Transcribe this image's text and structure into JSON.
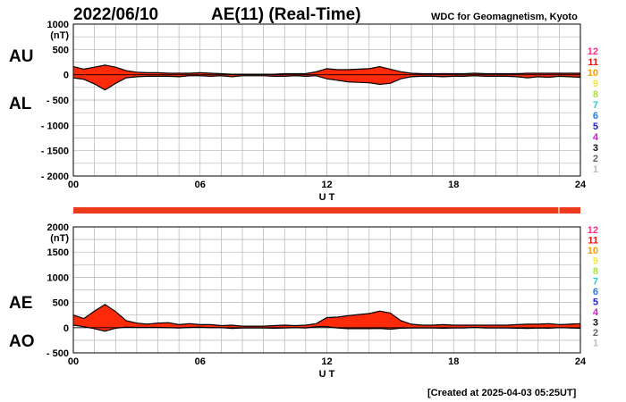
{
  "header": {
    "date": "2022/06/10",
    "title": "AE(11) (Real-Time)",
    "source": "WDC for Geomagnetism, Kyoto"
  },
  "footer": {
    "created": "[Created at 2025-04-03 05:25UT]"
  },
  "colors": {
    "fill": "#ff2a0a",
    "line": "#000000",
    "grid": "#b4b4b4",
    "bar": "#ee3a1c",
    "bar_marker": "#f7a98e"
  },
  "levels": {
    "labels": [
      "12",
      "11",
      "10",
      "9",
      "8",
      "7",
      "6",
      "5",
      "4",
      "3",
      "2",
      "1"
    ],
    "colors": [
      "#ff2d8a",
      "#e8141c",
      "#ff9a00",
      "#f2ea3a",
      "#a8e23a",
      "#1fd0d6",
      "#1e7fe6",
      "#2222d8",
      "#c81ec8",
      "#111111",
      "#666666",
      "#bbbbbb"
    ]
  },
  "chart_data": [
    {
      "type": "area",
      "name_top": "AU",
      "name_bottom": "AL",
      "xlabel": "U T",
      "ylabel_unit": "(nT)",
      "xlim": [
        0,
        24
      ],
      "ylim": [
        -2000,
        1000
      ],
      "xticks": [
        "00",
        "06",
        "12",
        "18",
        "24"
      ],
      "yticks": [
        "1000",
        "500",
        "0",
        "- 500",
        "- 1000",
        "- 1500",
        "- 2000"
      ],
      "ytick_values": [
        1000,
        500,
        0,
        -500,
        -1000,
        -1500,
        -2000
      ],
      "grid": true,
      "x": [
        0,
        0.5,
        1,
        1.5,
        2,
        2.5,
        3,
        3.5,
        4,
        4.5,
        5,
        5.5,
        6,
        6.5,
        7,
        7.5,
        8,
        8.5,
        9,
        9.5,
        10,
        10.5,
        11,
        11.5,
        12,
        12.5,
        13,
        13.5,
        14,
        14.5,
        15,
        15.5,
        16,
        16.5,
        17,
        17.5,
        18,
        18.5,
        19,
        19.5,
        20,
        20.5,
        21,
        21.5,
        22,
        22.5,
        23,
        23.5,
        24
      ],
      "series": [
        {
          "name": "AU",
          "values": [
            160,
            110,
            150,
            190,
            150,
            80,
            50,
            40,
            40,
            30,
            30,
            30,
            40,
            30,
            20,
            10,
            10,
            10,
            10,
            10,
            20,
            20,
            20,
            60,
            120,
            100,
            100,
            110,
            120,
            160,
            110,
            60,
            30,
            20,
            20,
            20,
            20,
            20,
            30,
            20,
            20,
            20,
            20,
            30,
            30,
            30,
            30,
            30,
            30
          ]
        },
        {
          "name": "AL",
          "values": [
            -60,
            -90,
            -180,
            -300,
            -170,
            -60,
            -40,
            -30,
            -30,
            -30,
            -40,
            -20,
            -20,
            -30,
            -20,
            -40,
            -20,
            -20,
            -20,
            -30,
            -30,
            -20,
            -30,
            -20,
            -80,
            -110,
            -140,
            -150,
            -160,
            -190,
            -170,
            -80,
            -40,
            -30,
            -30,
            -40,
            -30,
            -30,
            -20,
            -30,
            -30,
            -30,
            -40,
            -60,
            -40,
            -50,
            -30,
            -40,
            -50
          ]
        }
      ]
    },
    {
      "type": "area",
      "name_top": "AE",
      "name_bottom": "AO",
      "xlabel": "U T",
      "ylabel_unit": "(nT)",
      "xlim": [
        0,
        24
      ],
      "ylim": [
        -500,
        2000
      ],
      "xticks": [
        "00",
        "06",
        "12",
        "18",
        "24"
      ],
      "yticks": [
        "2000",
        "1500",
        "1000",
        "500",
        "0",
        "- 500"
      ],
      "ytick_values": [
        2000,
        1500,
        1000,
        500,
        0,
        -500
      ],
      "grid": true,
      "x": [
        0,
        0.5,
        1,
        1.5,
        2,
        2.5,
        3,
        3.5,
        4,
        4.5,
        5,
        5.5,
        6,
        6.5,
        7,
        7.5,
        8,
        8.5,
        9,
        9.5,
        10,
        10.5,
        11,
        11.5,
        12,
        12.5,
        13,
        13.5,
        14,
        14.5,
        15,
        15.5,
        16,
        16.5,
        17,
        17.5,
        18,
        18.5,
        19,
        19.5,
        20,
        20.5,
        21,
        21.5,
        22,
        22.5,
        23,
        23.5,
        24
      ],
      "series": [
        {
          "name": "AE",
          "values": [
            250,
            180,
            330,
            460,
            320,
            140,
            90,
            70,
            90,
            100,
            60,
            80,
            60,
            60,
            40,
            50,
            30,
            30,
            30,
            40,
            50,
            40,
            50,
            80,
            200,
            210,
            240,
            260,
            280,
            330,
            290,
            140,
            70,
            50,
            50,
            60,
            50,
            50,
            50,
            50,
            50,
            50,
            60,
            70,
            70,
            80,
            60,
            70,
            80
          ]
        },
        {
          "name": "AO",
          "values": [
            50,
            20,
            -20,
            -70,
            -10,
            10,
            5,
            5,
            5,
            0,
            -5,
            5,
            10,
            0,
            0,
            -15,
            -5,
            -5,
            -5,
            -10,
            -5,
            0,
            -5,
            20,
            20,
            -5,
            -20,
            -20,
            -20,
            -15,
            -30,
            -10,
            -5,
            -5,
            -5,
            -10,
            -5,
            -5,
            5,
            -5,
            -5,
            -5,
            -10,
            -15,
            -5,
            -10,
            0,
            -5,
            -10
          ]
        }
      ]
    }
  ]
}
